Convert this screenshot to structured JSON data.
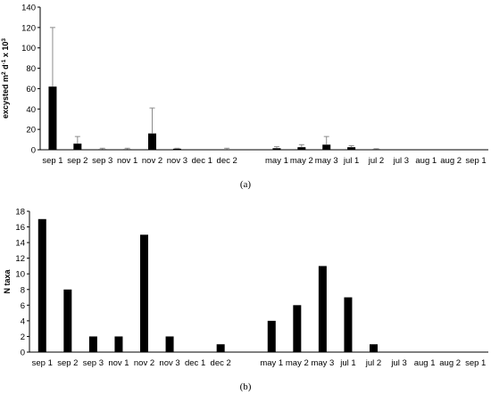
{
  "chart_data": [
    {
      "type": "bar",
      "panel_label": "(a)",
      "ylabel_main": "excysted m",
      "ylabel_parts": {
        "m_exp": "2",
        "d": " d",
        "d_exp": "-1",
        "x": " x 10",
        "x_exp": "3"
      },
      "categories": [
        "sep 1",
        "sep 2",
        "sep 3",
        "nov 1",
        "nov 2",
        "nov 3",
        "dec 1",
        "dec 2",
        "",
        "may 1",
        "may 2",
        "may 3",
        "jul 1",
        "jul 2",
        "jul 3",
        "aug 1",
        "aug 2",
        "sep 1"
      ],
      "values": [
        62,
        6,
        0.5,
        0.5,
        16,
        1,
        0,
        0.3,
        null,
        1.5,
        2.5,
        5,
        2.5,
        0.5,
        0,
        0,
        0,
        0
      ],
      "error_upper": [
        120,
        13,
        1.5,
        1.5,
        41,
        1.5,
        0,
        1.5,
        null,
        3,
        5,
        13,
        4,
        1,
        0,
        0,
        0,
        0
      ],
      "ylim": [
        0,
        140
      ],
      "yticks": [
        0,
        20,
        40,
        60,
        80,
        100,
        120,
        140
      ],
      "grid": false,
      "bar_color": "#000000",
      "error_color": "#8c8c8c"
    },
    {
      "type": "bar",
      "panel_label": "(b)",
      "ylabel": "N taxa",
      "categories": [
        "sep 1",
        "sep 2",
        "sep 3",
        "nov 1",
        "nov 2",
        "nov 3",
        "dec 1",
        "dec 2",
        "",
        "may 1",
        "may 2",
        "may 3",
        "jul 1",
        "jul 2",
        "jul 3",
        "aug 1",
        "aug 2",
        "sep 1"
      ],
      "values": [
        17,
        8,
        2,
        2,
        15,
        2,
        0,
        1,
        null,
        4,
        6,
        11,
        7,
        1,
        0,
        0,
        0,
        0
      ],
      "ylim": [
        0,
        18
      ],
      "yticks": [
        0,
        2,
        4,
        6,
        8,
        10,
        12,
        14,
        16,
        18
      ],
      "grid": false,
      "bar_color": "#000000"
    }
  ]
}
